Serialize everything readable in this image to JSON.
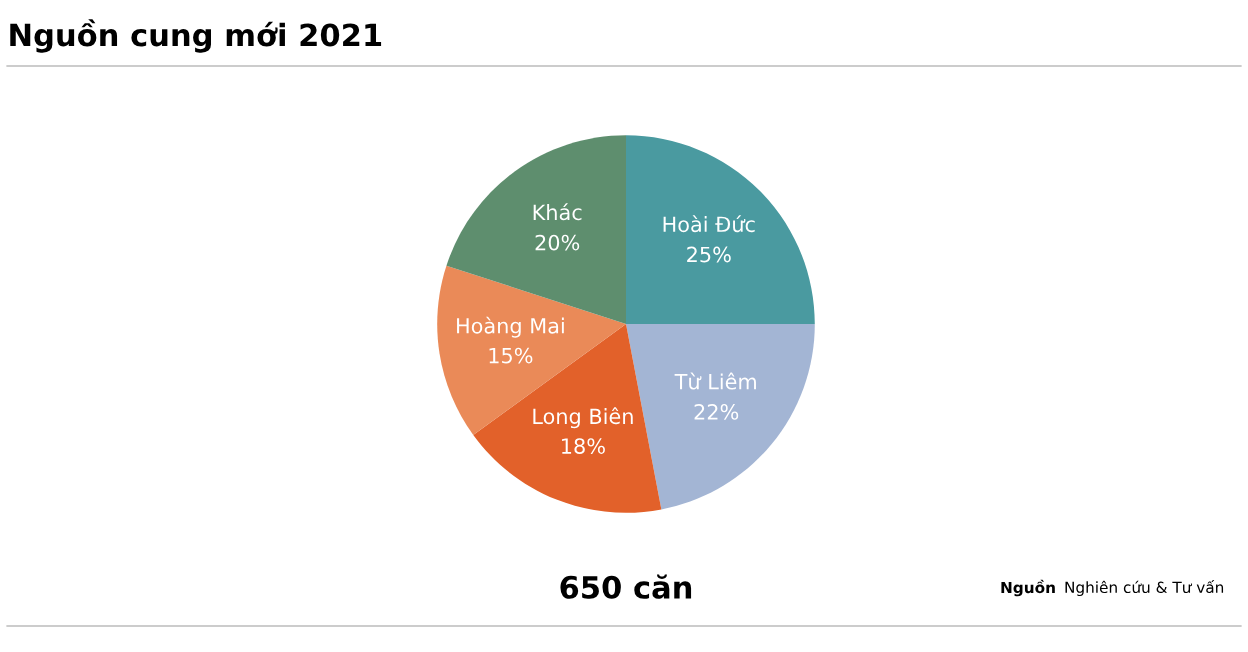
{
  "chart_data": {
    "type": "pie",
    "title": "Nguồn cung mới 2021",
    "categories": [
      "Hoài Đức",
      "Từ Liêm",
      "Long Biên",
      "Hoàng Mai",
      "Khác"
    ],
    "values": [
      25,
      22,
      18,
      15,
      20
    ],
    "colors": [
      "#4a9aa0",
      "#a3b5d4",
      "#e2612a",
      "#ea8a58",
      "#5e8e6e"
    ],
    "value_labels": [
      "25%",
      "22%",
      "18%",
      "15%",
      "20%"
    ],
    "annotations": [
      "650 căn",
      "Nguồn",
      "Nghiên cứu & Tư vấn"
    ]
  }
}
